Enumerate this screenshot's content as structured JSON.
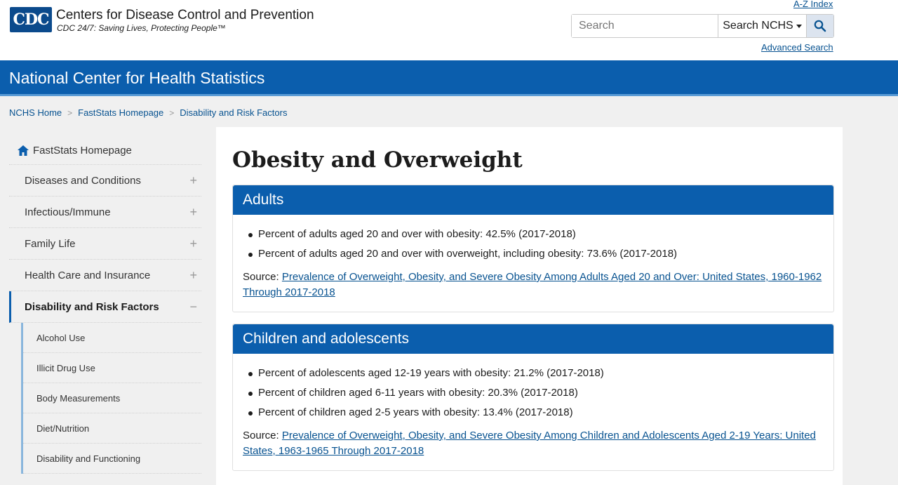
{
  "header": {
    "logo_text": "CDC",
    "org_name": "Centers for Disease Control and Prevention",
    "tagline": "CDC 24/7: Saving Lives, Protecting People™",
    "az_index": "A-Z Index",
    "search_placeholder": "Search",
    "search_scope": "Search NCHS",
    "advanced_search": "Advanced Search"
  },
  "banner": {
    "title": "National Center for Health Statistics"
  },
  "breadcrumb": [
    "NCHS Home",
    "FastStats Homepage",
    "Disability and Risk Factors"
  ],
  "sidebar": {
    "home": "FastStats Homepage",
    "items": [
      {
        "label": "Diseases and Conditions",
        "toggle": "+"
      },
      {
        "label": "Infectious/Immune",
        "toggle": "+"
      },
      {
        "label": "Family Life",
        "toggle": "+"
      },
      {
        "label": "Health Care and Insurance",
        "toggle": "+"
      },
      {
        "label": "Disability and Risk Factors",
        "toggle": "−"
      }
    ],
    "subitems": [
      "Alcohol Use",
      "Illicit Drug Use",
      "Body Measurements",
      "Diet/Nutrition",
      "Disability and Functioning"
    ]
  },
  "main": {
    "title": "Obesity and Overweight",
    "adults": {
      "heading": "Adults",
      "bullets": [
        "Percent of adults aged 20 and over with obesity: 42.5% (2017-2018)",
        "Percent of adults aged 20 and over with overweight, including obesity: 73.6% (2017-2018)"
      ],
      "source_label": "Source: ",
      "source_link": "Prevalence of Overweight, Obesity, and Severe Obesity Among Adults Aged 20 and Over: United States, 1960-1962 Through 2017-2018"
    },
    "children": {
      "heading": "Children and adolescents",
      "bullets": [
        "Percent of adolescents aged 12-19 years with obesity: 21.2% (2017-2018)",
        "Percent of children aged 6-11 years with obesity: 20.3% (2017-2018)",
        "Percent of children aged 2-5 years with obesity: 13.4% (2017-2018)"
      ],
      "source_label": "Source: ",
      "source_link": "Prevalence of Overweight, Obesity, and Severe Obesity Among Children and Adolescents Aged 2-19 Years: United States, 1963-1965 Through 2017-2018"
    }
  },
  "colors": {
    "brand_blue": "#0b5ead",
    "link": "#075290"
  },
  "icons": {
    "home": "home-icon",
    "search": "search-icon"
  }
}
